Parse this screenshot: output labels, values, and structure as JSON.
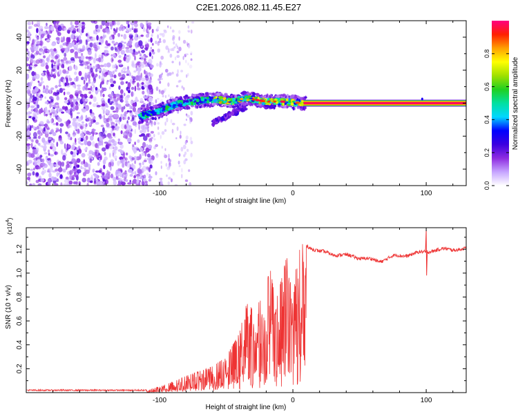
{
  "title": "C2E1.2026.082.11.45.E27",
  "chart_data": [
    {
      "type": "heatmap",
      "name": "spectrogram",
      "xlabel": "Height of straight line (km)",
      "ylabel": "Frequency (Hz)",
      "xlim": [
        -200,
        130
      ],
      "ylim": [
        -50,
        50
      ],
      "xticks": [
        -100,
        0,
        100
      ],
      "yticks": [
        -40,
        -20,
        0,
        20,
        40
      ],
      "colorbar": {
        "label": "Normalized spectral amplitude",
        "range": [
          0.0,
          1.0
        ],
        "ticks": [
          0.0,
          0.2,
          0.4,
          0.6,
          0.8
        ],
        "colors": [
          "#ffffff",
          "#c6a4ff",
          "#8e2be0",
          "#3b00e0",
          "#0000ff",
          "#00d7ff",
          "#00e0a0",
          "#20d020",
          "#a0e000",
          "#ffff00",
          "#ffa000",
          "#ff2000",
          "#ff0080"
        ]
      },
      "features": {
        "noise_region_x": [
          -200,
          -105
        ],
        "signal_track": [
          [
            -115,
            -8
          ],
          [
            -105,
            -6
          ],
          [
            -95,
            -3
          ],
          [
            -85,
            0
          ],
          [
            -75,
            1
          ],
          [
            -65,
            2
          ],
          [
            -55,
            2
          ],
          [
            -45,
            1
          ],
          [
            -35,
            3
          ],
          [
            -28,
            2
          ],
          [
            -20,
            1
          ],
          [
            -10,
            1
          ],
          [
            0,
            0.5
          ],
          [
            10,
            0
          ],
          [
            130,
            0
          ]
        ],
        "secondary_track": [
          [
            -60,
            -12
          ],
          [
            -45,
            -5
          ],
          [
            -35,
            -2
          ]
        ],
        "steady_line_x": [
          8,
          130
        ],
        "steady_line_freq": 0
      }
    },
    {
      "type": "line",
      "name": "snr",
      "xlabel": "Height of straight line (km)",
      "ylabel": "SNR (10 * v/v)",
      "scale_label_base": "(x10",
      "scale_label_exp": "4",
      "scale_label_end": ")",
      "xlim": [
        -200,
        130
      ],
      "ylim": [
        0,
        1.38
      ],
      "xticks": [
        -100,
        0,
        100
      ],
      "yticks": [
        0.2,
        0.4,
        0.6,
        0.8,
        1.0,
        1.2
      ],
      "color": "#ee3333",
      "envelope": [
        [
          -200,
          0.02
        ],
        [
          -110,
          0.02
        ],
        [
          -100,
          0.05
        ],
        [
          -90,
          0.09
        ],
        [
          -80,
          0.14
        ],
        [
          -70,
          0.18
        ],
        [
          -60,
          0.22
        ],
        [
          -50,
          0.3
        ],
        [
          -40,
          0.5
        ],
        [
          -35,
          0.75
        ],
        [
          -30,
          0.7
        ],
        [
          -22,
          0.8
        ],
        [
          -17,
          1.05
        ],
        [
          -13,
          0.75
        ],
        [
          -7,
          1.02
        ],
        [
          -4,
          1.18
        ],
        [
          0,
          0.72
        ],
        [
          3,
          1.15
        ],
        [
          8,
          1.26
        ],
        [
          12,
          1.22
        ],
        [
          20,
          1.18
        ],
        [
          30,
          1.16
        ],
        [
          45,
          1.14
        ],
        [
          55,
          1.12
        ],
        [
          65,
          1.1
        ],
        [
          75,
          1.14
        ],
        [
          85,
          1.15
        ],
        [
          95,
          1.17
        ],
        [
          105,
          1.19
        ],
        [
          115,
          1.2
        ],
        [
          130,
          1.2
        ]
      ],
      "spike": {
        "x": 100,
        "top": 1.36,
        "bottom": 0.98
      }
    }
  ]
}
